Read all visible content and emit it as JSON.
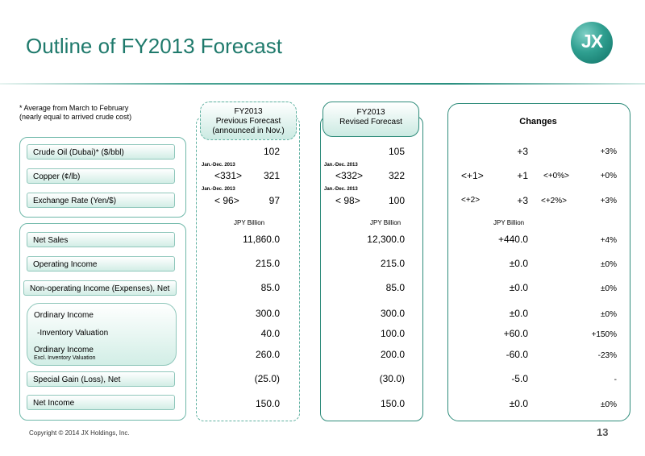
{
  "title": "Outline of FY2013 Forecast",
  "logo": {
    "text": "JX"
  },
  "note": [
    "* Average from March to February",
    "(nearly equal to arrived crude cost)"
  ],
  "columns": {
    "previous": [
      "FY2013",
      "Previous Forecast",
      "(announced in Nov.)"
    ],
    "revised": [
      "FY2013",
      "Revised Forecast"
    ],
    "changes": "Changes"
  },
  "unit": "JPY Billion",
  "period_note": "Jan.-Dec. 2013",
  "top_rows": [
    {
      "label": "Crude Oil (Dubai)*  ($/bbl)",
      "prev": "102",
      "rev": "105",
      "chg": "+3",
      "pct": "+3%"
    },
    {
      "label": "Copper  (¢/lb)",
      "prev_sub": "<331>",
      "prev": "321",
      "rev_sub": "<332>",
      "rev": "322",
      "chg_sub": "<+1>",
      "chg": "+1",
      "pct_sub": "<+0%>",
      "pct": "+0%"
    },
    {
      "label": "Exchange Rate    (Yen/$)",
      "prev_sub": "< 96>",
      "prev": "97",
      "rev_sub": "< 98>",
      "rev": "100",
      "chg_sub": "<+2>",
      "chg": "+3",
      "pct_sub": "<+2%>",
      "pct": "+3%"
    }
  ],
  "rows": [
    {
      "label": "Net Sales",
      "prev": "11,860.0",
      "rev": "12,300.0",
      "chg": "+440.0",
      "pct": "+4%"
    },
    {
      "label": "Operating Income",
      "prev": "215.0",
      "rev": "215.0",
      "chg": "±0.0",
      "pct": "±0%"
    },
    {
      "label": "Non-operating Income (Expenses), Net",
      "prev": "85.0",
      "rev": "85.0",
      "chg": "±0.0",
      "pct": "±0%"
    },
    {
      "label": "Ordinary Income",
      "prev": "300.0",
      "rev": "300.0",
      "chg": "±0.0",
      "pct": "±0%"
    },
    {
      "label": "-Inventory Valuation",
      "prev": "40.0",
      "rev": "100.0",
      "chg": "+60.0",
      "pct": "+150%"
    },
    {
      "label": "Ordinary Income",
      "sublabel": "Excl. Inventory Valuation",
      "prev": "260.0",
      "rev": "200.0",
      "chg": "-60.0",
      "pct": "-23%"
    },
    {
      "label": "Special Gain (Loss), Net",
      "prev": "(25.0)",
      "rev": "(30.0)",
      "chg": "-5.0",
      "pct": "-"
    },
    {
      "label": "Net Income",
      "prev": "150.0",
      "rev": "150.0",
      "chg": "±0.0",
      "pct": "±0%"
    }
  ],
  "footer": "Copyright © 2014 JX Holdings, Inc.",
  "page": "13",
  "colors": {
    "accent": "#1f7a6c",
    "border": "#2f8c7b"
  }
}
